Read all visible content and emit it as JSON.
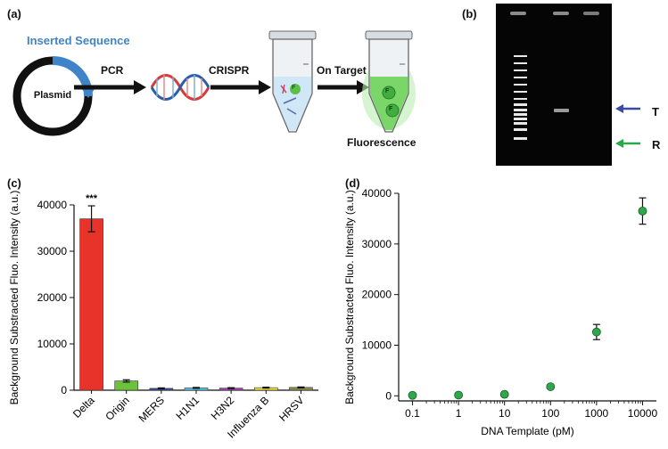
{
  "panels": {
    "a": {
      "label": "(a)",
      "inserted_sequence": "Inserted Sequence",
      "plasmid": "Plasmid",
      "pcr": "PCR",
      "crispr": "CRISPR",
      "on_target": "On Target",
      "fluorescence": "Fluorescence",
      "tube_marker": "F"
    },
    "b": {
      "label": "(b)",
      "marker_t": "T",
      "marker_r": "R"
    },
    "c": {
      "label": "(c)"
    },
    "d": {
      "label": "(d)"
    }
  },
  "chart_data": [
    {
      "type": "bar",
      "panel": "c",
      "categories": [
        "Delta",
        "Origin",
        "MERS",
        "H1N1",
        "H3N2",
        "Influenza B",
        "HRSV"
      ],
      "values": [
        37000,
        2000,
        400,
        500,
        450,
        550,
        600
      ],
      "errors": [
        2800,
        250,
        100,
        100,
        100,
        100,
        100
      ],
      "colors": [
        "#e8332a",
        "#6cc23a",
        "#3c4fa8",
        "#5cc9e6",
        "#b040b8",
        "#f0e040",
        "#8c8c4c"
      ],
      "annotation": "***",
      "xlabel": "",
      "ylabel": "Background Substracted Fluo. Intensity (a.u.)",
      "ylim": [
        0,
        40000
      ],
      "yticks": [
        0,
        10000,
        20000,
        30000,
        40000
      ]
    },
    {
      "type": "scatter",
      "panel": "d",
      "x": [
        0.1,
        1,
        10,
        100,
        1000,
        10000
      ],
      "y": [
        100,
        150,
        300,
        1800,
        12600,
        36500
      ],
      "errors": [
        100,
        100,
        150,
        200,
        1500,
        2600
      ],
      "x_tick_labels": [
        "0.1",
        "1",
        "10",
        "100",
        "1000",
        "10000"
      ],
      "xscale": "log",
      "xlim": [
        0.05,
        20000
      ],
      "xlabel": "DNA Template (pM)",
      "ylabel": "Background Substracted Fluo. Intensity (a.u.)",
      "ylim": [
        -1000,
        40000
      ],
      "yticks": [
        0,
        10000,
        20000,
        30000,
        40000
      ],
      "marker_color": "#2ea84a"
    }
  ]
}
